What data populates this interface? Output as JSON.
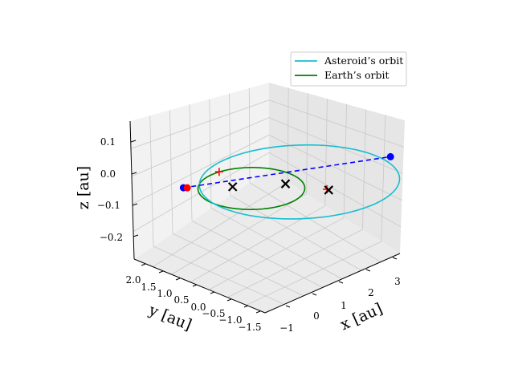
{
  "chart_data": {
    "type": "3d-line",
    "xlabel": "x [au]",
    "ylabel": "y [au]",
    "zlabel": "z [au]",
    "x_ticks": [
      "−1",
      "0",
      "1",
      "2",
      "3"
    ],
    "y_ticks": [
      "2.0",
      "1.5",
      "1.0",
      "0.5",
      "0.0",
      "−0.5",
      "−1.0",
      "−1.5"
    ],
    "z_ticks": [
      "0.1",
      "0.0",
      "−0.1",
      "−0.2"
    ],
    "legend_position": "top-right",
    "grid": true,
    "series": [
      {
        "name": "Asteroid’s orbit",
        "color": "#17becf",
        "kind": "ellipse",
        "semi_major_axis_au": 1.9,
        "eccentricity": 0.5,
        "inclination_deg": 5,
        "perihelion_au": 0.95,
        "aphelion_au": 2.85
      },
      {
        "name": "Earth’s orbit",
        "color": "#008000",
        "kind": "circle",
        "radius_au": 1.0
      }
    ],
    "markers": [
      {
        "symbol": "circle",
        "color": "#0000ff",
        "x": 2.8,
        "y": -0.8,
        "z": 0.02
      },
      {
        "symbol": "circle",
        "color": "#0000ff",
        "x": -0.9,
        "y": 0.9,
        "z": 0.0
      },
      {
        "symbol": "circle",
        "color": "#ff0000",
        "x": -0.85,
        "y": 0.85,
        "z": 0.0
      },
      {
        "symbol": "plus",
        "color": "#ff0000",
        "x": 0.1,
        "y": 1.0,
        "z": 0.0
      },
      {
        "symbol": "plus",
        "color": "#ff0000",
        "x": 1.0,
        "y": -1.0,
        "z": 0.0
      },
      {
        "symbol": "x",
        "color": "#000000",
        "x": -0.2,
        "y": 0.3,
        "z": 0.0
      },
      {
        "symbol": "x",
        "color": "#000000",
        "x": 0.5,
        "y": -0.4,
        "z": 0.02
      },
      {
        "symbol": "x",
        "color": "#000000",
        "x": 1.0,
        "y": -1.05,
        "z": 0.0
      }
    ],
    "connector": {
      "style": "dashed",
      "color": "#0000ff",
      "from": [
        -0.9,
        0.9,
        0.0
      ],
      "to": [
        2.8,
        -0.8,
        0.02
      ]
    }
  }
}
